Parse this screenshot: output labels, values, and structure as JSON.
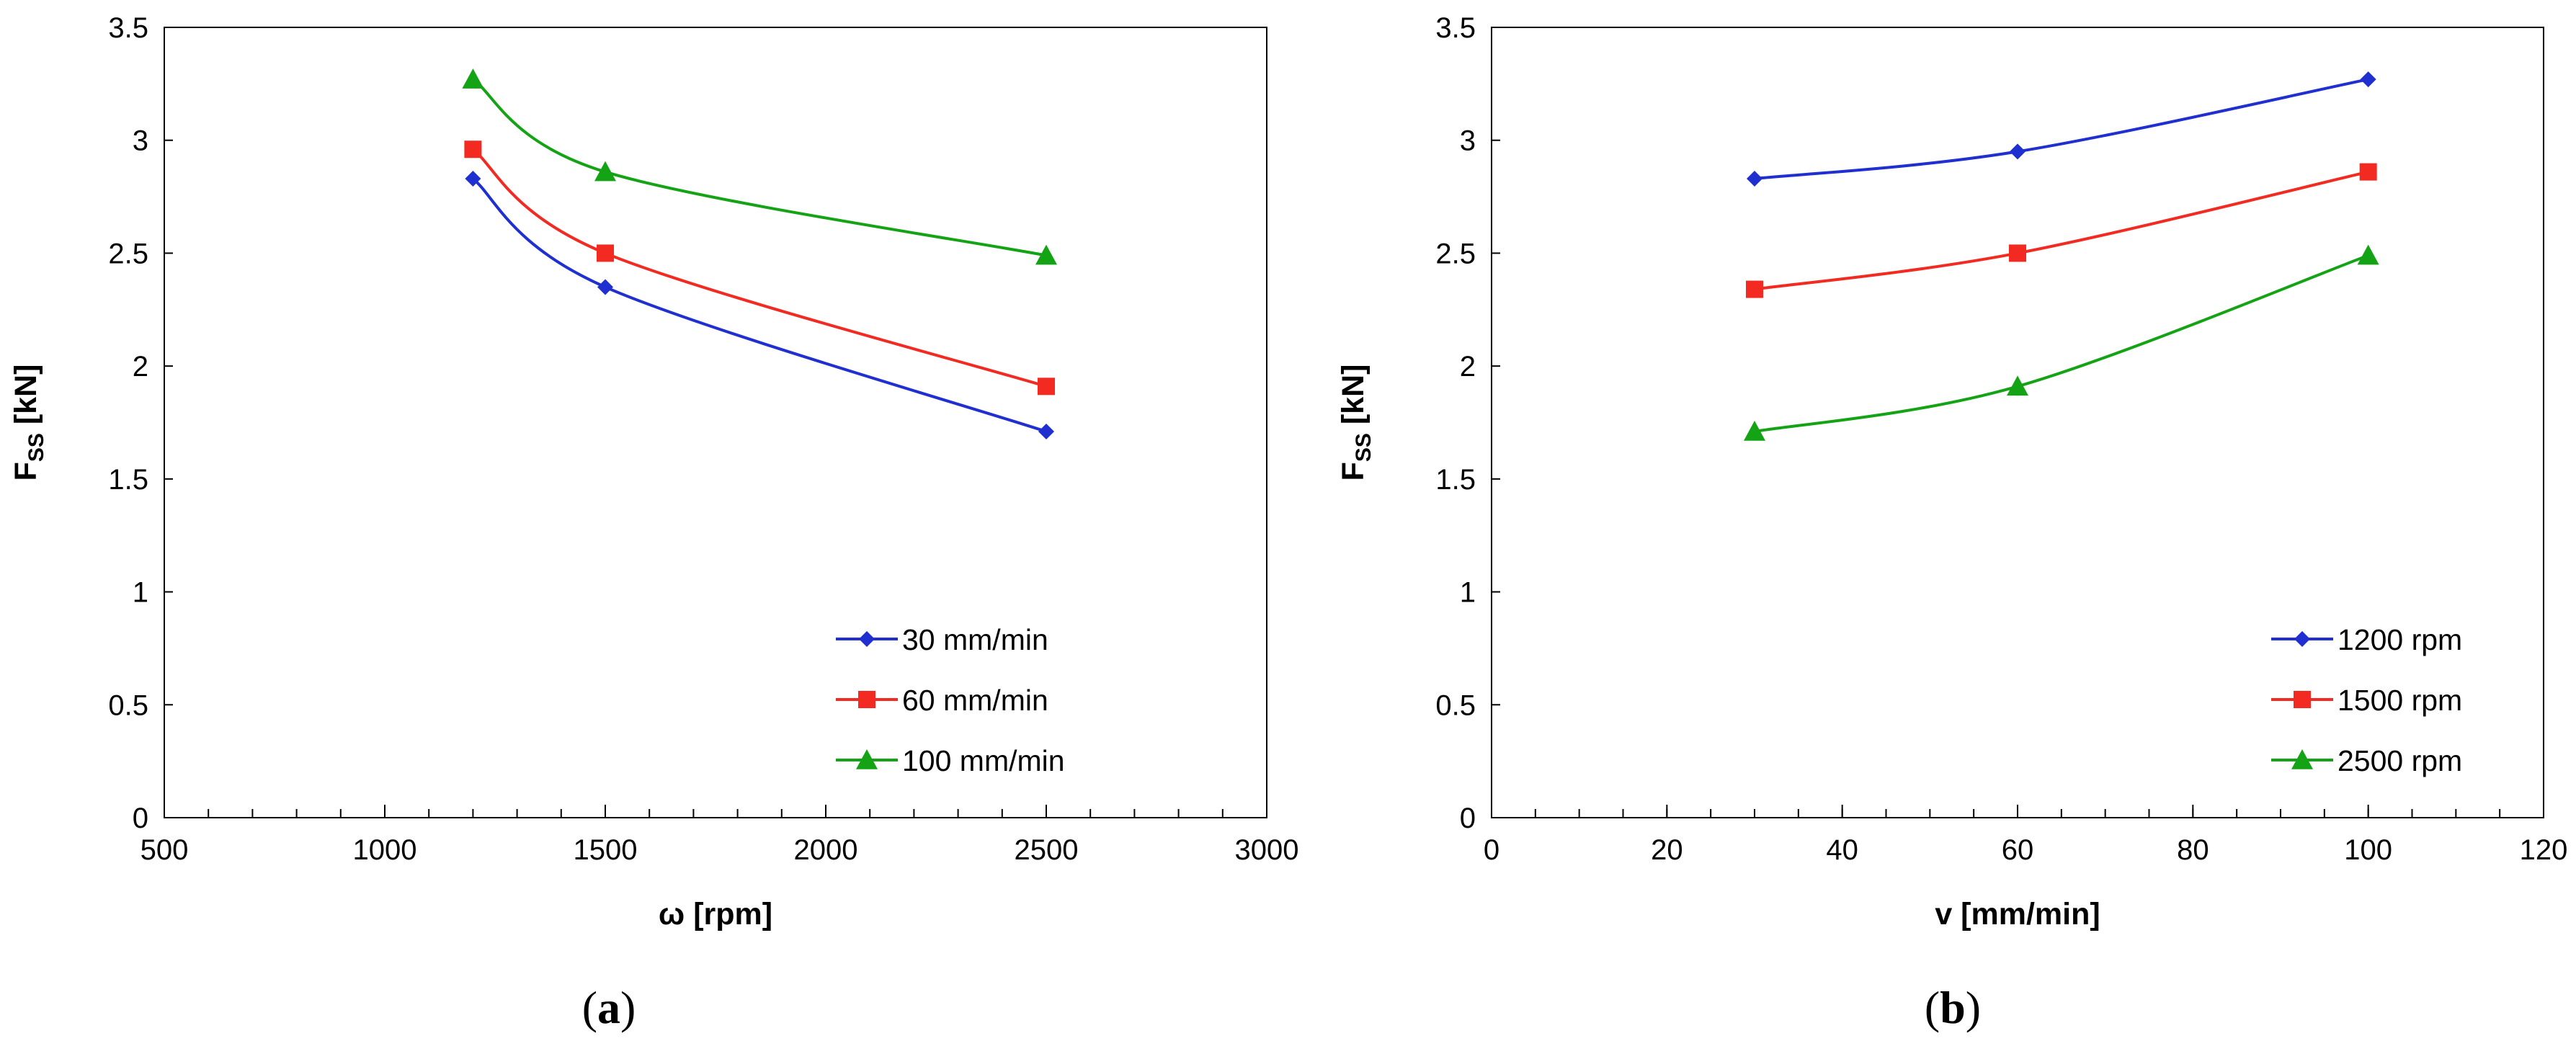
{
  "colors": {
    "blue": "#1f2fd0",
    "red": "#f22a21",
    "green": "#14a314",
    "axis": "#000000"
  },
  "chart_data": [
    {
      "type": "line",
      "panel_label": "a",
      "x_name": "ω [rpm]",
      "y_main": "F",
      "y_sub": "SS",
      "y_unit": " [kN]",
      "xlim": [
        500,
        3000
      ],
      "ylim": [
        0,
        3.5
      ],
      "xticks": [
        500,
        1000,
        1500,
        2000,
        2500,
        3000
      ],
      "yticks": [
        0,
        0.5,
        1,
        1.5,
        2,
        2.5,
        3,
        3.5
      ],
      "ytick_labels": [
        "0",
        "0.5",
        "1",
        "1.5",
        "2",
        "2.5",
        "3",
        "3.5"
      ],
      "x_minor_step": 100,
      "grid": false,
      "legend_position": "bottom-right",
      "x": [
        1200,
        1500,
        2500
      ],
      "series": [
        {
          "name": "30 mm/min",
          "values": [
            2.83,
            2.35,
            1.71
          ],
          "color": "blue",
          "marker": "diamond"
        },
        {
          "name": "60 mm/min",
          "values": [
            2.96,
            2.5,
            1.91
          ],
          "color": "red",
          "marker": "square"
        },
        {
          "name": "100 mm/min",
          "values": [
            3.27,
            2.86,
            2.49
          ],
          "color": "green",
          "marker": "triangle"
        }
      ]
    },
    {
      "type": "line",
      "panel_label": "b",
      "x_name": "v [mm/min]",
      "y_main": "F",
      "y_sub": "SS",
      "y_unit": " [kN]",
      "xlim": [
        0,
        120
      ],
      "ylim": [
        0,
        3.5
      ],
      "xticks": [
        0,
        20,
        40,
        60,
        80,
        100,
        120
      ],
      "yticks": [
        0,
        0.5,
        1,
        1.5,
        2,
        2.5,
        3,
        3.5
      ],
      "ytick_labels": [
        "0",
        "0.5",
        "1",
        "1.5",
        "2",
        "2.5",
        "3",
        "3.5"
      ],
      "x_minor_step": 5,
      "grid": false,
      "legend_position": "bottom-right",
      "x": [
        30,
        60,
        100
      ],
      "series": [
        {
          "name": "1200 rpm",
          "values": [
            2.83,
            2.95,
            3.27
          ],
          "color": "blue",
          "marker": "diamond"
        },
        {
          "name": "1500 rpm",
          "values": [
            2.34,
            2.5,
            2.86
          ],
          "color": "red",
          "marker": "square"
        },
        {
          "name": "2500 rpm",
          "values": [
            1.71,
            1.91,
            2.49
          ],
          "color": "green",
          "marker": "triangle"
        }
      ]
    }
  ]
}
